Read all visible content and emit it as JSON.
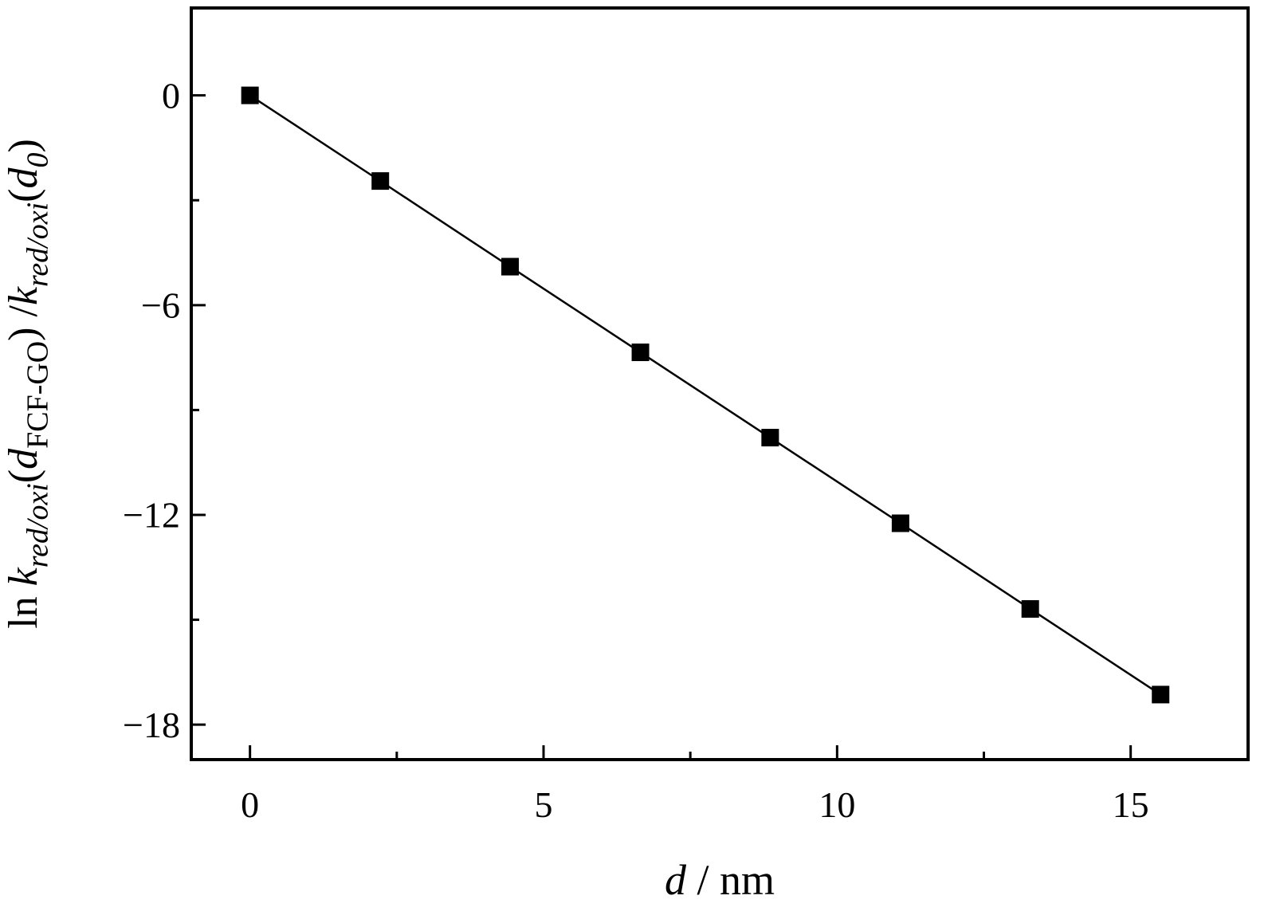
{
  "chart_data": {
    "type": "scatter",
    "title": "",
    "series": [
      {
        "name": "ln k_red/oxi(d_FCF-GO)/k_red/oxi(d_0)",
        "x": [
          0,
          2.22,
          4.43,
          6.65,
          8.86,
          11.08,
          13.29,
          15.51
        ],
        "y": [
          0,
          -2.45,
          -4.9,
          -7.35,
          -9.79,
          -12.24,
          -14.69,
          -17.14
        ],
        "marker": "filled-square",
        "line": "solid"
      }
    ],
    "xlabel_segments": [
      {
        "t": "d",
        "style": "italic"
      },
      {
        "t": " / nm",
        "style": "normal"
      }
    ],
    "ylabel_segments": [
      {
        "t": "ln ",
        "style": "normal"
      },
      {
        "t": "k",
        "style": "italic"
      },
      {
        "t": "red/oxi",
        "style": "italic-sub"
      },
      {
        "t": "(",
        "style": "normal"
      },
      {
        "t": "d",
        "style": "italic"
      },
      {
        "t": "FCF-GO",
        "style": "sub"
      },
      {
        "t": ") /",
        "style": "normal"
      },
      {
        "t": "k",
        "style": "italic"
      },
      {
        "t": "red/oxi",
        "style": "italic-sub"
      },
      {
        "t": "(",
        "style": "normal"
      },
      {
        "t": "d",
        "style": "italic"
      },
      {
        "t": "0",
        "style": "italic-sub"
      },
      {
        "t": ")",
        "style": "normal"
      }
    ],
    "xlabel_plain": "d / nm",
    "ylabel_plain": "ln k_red/oxi(d_FCF-GO) /k_red/oxi(d_0)",
    "xlim": [
      -1,
      17
    ],
    "ylim": [
      -19,
      2.5
    ],
    "xticks": {
      "major": [
        0,
        5,
        10,
        15
      ],
      "labels": [
        "0",
        "5",
        "10",
        "15"
      ],
      "minor": [
        2.5,
        7.5,
        12.5
      ]
    },
    "yticks": {
      "major": [
        0,
        -6,
        -12,
        -18
      ],
      "labels": [
        "0",
        "−6",
        "−12",
        "−18"
      ],
      "minor": [
        -3,
        -9,
        -15
      ]
    },
    "grid": false,
    "legend": null,
    "colors": {
      "line": "#000000",
      "marker": "#000000",
      "frame": "#000000",
      "background": "#ffffff",
      "text": "#000000"
    }
  }
}
